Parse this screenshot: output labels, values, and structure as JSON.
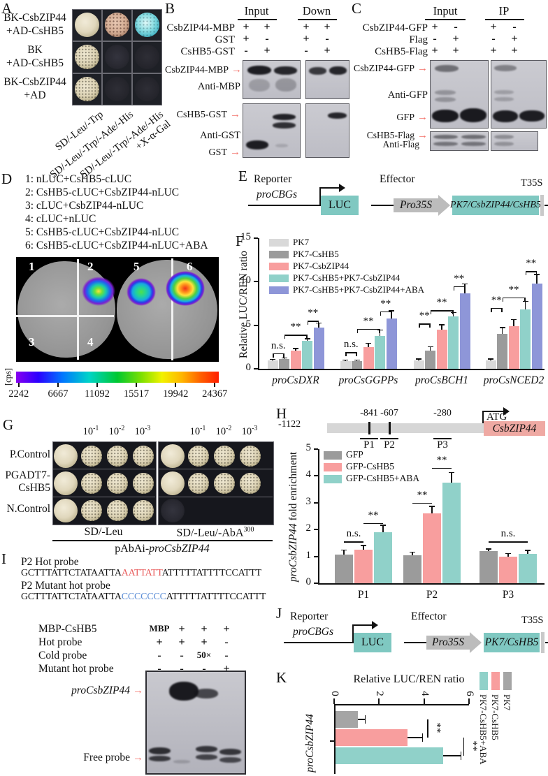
{
  "panels": {
    "A": {
      "label": "A",
      "row_labels": [
        "BK-CsbZIP44\n+AD-CsHB5",
        "BK\n+AD-CsHB5",
        "BK-CsbZIP44\n+AD"
      ],
      "media_labels": [
        "SD/-Leu/-Trp",
        "SD/-Leu/-Trp/-Ade/-His",
        "SD/-Leu/-Trp/-Ade/-His\n+X-α-Gal"
      ],
      "spots": [
        [
          "cream",
          "pink",
          "cyan"
        ],
        [
          "cream",
          "dark",
          "darkfaint"
        ],
        [
          "cream",
          "darkfaint",
          "darkfaint"
        ]
      ]
    },
    "B": {
      "label": "B",
      "group_headers": [
        "Input",
        "Down"
      ],
      "lanes": [
        {
          "name": "CsbZIP44-MBP",
          "vals": [
            "+",
            "+",
            "+",
            "+"
          ]
        },
        {
          "name": "GST",
          "vals": [
            "+",
            "-",
            "+",
            "-"
          ]
        },
        {
          "name": "CsHB5-GST",
          "vals": [
            "-",
            "+",
            "-",
            "+"
          ]
        }
      ],
      "band_labels": {
        "b1": "CsbZIP44-MBP",
        "b2": "Anti-MBP",
        "b3": "CsHB5-GST",
        "b4": "Anti-GST",
        "b5": "GST"
      }
    },
    "C": {
      "label": "C",
      "group_headers": [
        "Input",
        "IP"
      ],
      "lanes": [
        {
          "name": "CsbZIP44-GFP",
          "vals": [
            "+",
            "-",
            "+",
            "-"
          ]
        },
        {
          "name": "Flag",
          "vals": [
            "-",
            "+",
            "-",
            "+"
          ]
        },
        {
          "name": "CsHB5-Flag",
          "vals": [
            "+",
            "+",
            "+",
            "+"
          ]
        }
      ],
      "band_labels": {
        "b1": "CsbZIP44-GFP",
        "b2": "Anti-GFP",
        "b3": "GFP",
        "b4": "CsHB5-Flag",
        "b5": "Anti-Flag"
      }
    },
    "D": {
      "label": "D",
      "combinations": [
        "1: nLUC+CsHB5-cLUC",
        "2: CsHB5-cLUC+CsbZIP44-nLUC",
        "3: cLUC+CsbZIP44-nLUC",
        "4: cLUC+nLUC",
        "5: CsHB5-cLUC+CsbZIP44-nLUC",
        "6: CsHB5-cLUC+CsbZIP44-nLUC+ABA"
      ],
      "leaf_numbers": [
        "1",
        "2",
        "3",
        "4",
        "5",
        "6"
      ],
      "colorbar_unit": "[cps]",
      "colorbar_ticks": [
        "2242",
        "6667",
        "11092",
        "15517",
        "19942",
        "24367"
      ]
    },
    "E": {
      "label": "E",
      "reporter_title": "Reporter",
      "reporter_promoter": "proCBGs",
      "reporter_gene": "LUC",
      "effector_title": "Effector",
      "effector_promoter": "Pro35S",
      "effector_gene": "PK7/CsbZIP44/CsHB5",
      "terminator": "T35S"
    },
    "F": {
      "label": "F"
    },
    "G": {
      "label": "G",
      "dilution_base": "10",
      "dilution_exps": [
        "-1",
        "-2",
        "-3"
      ],
      "row_labels": [
        "P.Control",
        "PGADT7-\nCsHB5",
        "N.Control"
      ],
      "media_left": "SD/-Leu",
      "media_right_base": "SD/-Leu/-AbA",
      "media_right_sup": "300",
      "bait_prefix": "pAbAi-",
      "bait_gene": "proCsbZIP44"
    },
    "H": {
      "label": "H",
      "promoter": {
        "start": "-1122",
        "sites": [
          "-841",
          "-607",
          "-280"
        ],
        "atg": "ATG",
        "gene": "CsbZIP44",
        "probes": [
          "P1",
          "P2",
          "P3"
        ]
      }
    },
    "I": {
      "label": "I",
      "probes": [
        {
          "name": "P2 Hot probe",
          "pre": "GCTTTATTCTATAATTA",
          "core": "AATTATT",
          "post": "ATTTTTATTTTCCATTT",
          "core_style": "red"
        },
        {
          "name": "P2 Mutant hot probe",
          "pre": "GCTTTATTCTATAATTA",
          "core": "CCCCCCC",
          "post": "ATTTTTATTTTCCATTT",
          "core_style": "blue"
        }
      ],
      "emsa_rows": [
        {
          "name": "MBP-CsHB5",
          "vals": [
            "MBP",
            "+",
            "+",
            "+"
          ]
        },
        {
          "name": "Hot probe",
          "vals": [
            "+",
            "+",
            "+",
            "-"
          ]
        },
        {
          "name": "Cold probe",
          "vals": [
            "-",
            "-",
            "50×",
            "-"
          ]
        },
        {
          "name": "Mutant hot probe",
          "vals": [
            "-",
            "-",
            "-",
            "+"
          ]
        }
      ],
      "shift_label": "proCsbZIP44",
      "free_label": "Free probe"
    },
    "J": {
      "label": "J",
      "reporter_title": "Reporter",
      "reporter_promoter": "proCBGs",
      "reporter_gene": "LUC",
      "effector_title": "Effector",
      "effector_promoter": "Pro35S",
      "effector_gene": "PK7/CsHB5",
      "terminator": "T35S"
    },
    "K": {
      "label": "K"
    }
  },
  "chart_data": [
    {
      "panel": "F",
      "type": "bar",
      "ylabel": "Relative LUC/REN ratio",
      "ylim": [
        0,
        15
      ],
      "yticks": [
        0,
        5,
        10,
        15
      ],
      "categories": [
        "proCsDXR",
        "proCsGGPPs",
        "proCsBCH1",
        "proCsNCED2"
      ],
      "italic_categories": true,
      "legend_position": "upper-left",
      "grid": false,
      "series": [
        {
          "name": "PK7",
          "color": "#d9d9d9",
          "values": [
            1.0,
            0.9,
            1.0,
            1.0
          ],
          "errors": [
            0.15,
            0.15,
            0.2,
            0.2
          ]
        },
        {
          "name": "PK7-CsHB5",
          "color": "#9b9b9b",
          "values": [
            1.1,
            0.9,
            2.1,
            4.0
          ],
          "errors": [
            0.2,
            0.15,
            0.5,
            0.8
          ]
        },
        {
          "name": "PK7-CsbZIP44",
          "color": "#f89e9e",
          "values": [
            2.1,
            2.5,
            4.5,
            4.9
          ],
          "errors": [
            0.3,
            0.5,
            0.6,
            0.8
          ]
        },
        {
          "name": "PK7-CsHB5+PK7-CsbZIP44",
          "color": "#90d1c9",
          "values": [
            3.2,
            3.8,
            6.0,
            6.8
          ],
          "errors": [
            0.3,
            0.7,
            0.5,
            1.0
          ]
        },
        {
          "name": "PK7-CsHB5+PK7-CsbZIP44+ABA",
          "color": "#8e96d8",
          "values": [
            4.7,
            5.8,
            8.7,
            9.8
          ],
          "errors": [
            0.6,
            0.9,
            1.1,
            1.1
          ]
        }
      ],
      "sig": [
        [
          {
            "label": "n.s.",
            "s1": 0,
            "s2": 1,
            "y": 1.8
          },
          {
            "label": "**",
            "s1": 1,
            "s2": 3,
            "y": 3.9
          },
          {
            "label": "**",
            "s1": 3,
            "s2": 4,
            "y": 5.5
          }
        ],
        [
          {
            "label": "n.s.",
            "s1": 0,
            "s2": 1,
            "y": 1.9
          },
          {
            "label": "**",
            "s1": 1,
            "s2": 3,
            "y": 4.6
          },
          {
            "label": "**",
            "s1": 3,
            "s2": 4,
            "y": 6.6
          }
        ],
        [
          {
            "label": "**",
            "s1": 0,
            "s2": 1,
            "y": 5.2
          },
          {
            "label": "**",
            "s1": 1,
            "s2": 3,
            "y": 6.7
          },
          {
            "label": "**",
            "s1": 3,
            "s2": 4,
            "y": 9.5
          }
        ],
        [
          {
            "label": "**",
            "s1": 0,
            "s2": 1,
            "y": 7.0
          },
          {
            "label": "**",
            "s1": 1,
            "s2": 3,
            "y": 8.2
          },
          {
            "label": "**",
            "s1": 3,
            "s2": 4,
            "y": 11.2
          }
        ]
      ]
    },
    {
      "panel": "H",
      "type": "bar",
      "ylabel_italic": "proCsbZIP44",
      "ylabel_rest": " fold enrichment",
      "ylim": [
        0,
        5
      ],
      "yticks": [
        0,
        1,
        2,
        3,
        4,
        5
      ],
      "categories": [
        "P1",
        "P2",
        "P3"
      ],
      "italic_categories": false,
      "legend_position": "upper-left",
      "grid": false,
      "series": [
        {
          "name": "GFP",
          "color": "#9b9b9b",
          "values": [
            1.08,
            1.03,
            1.2
          ],
          "errors": [
            0.18,
            0.15,
            0.1
          ]
        },
        {
          "name": "GFP-CsHB5",
          "color": "#f89e9e",
          "values": [
            1.25,
            2.6,
            1.0
          ],
          "errors": [
            0.17,
            0.28,
            0.12
          ]
        },
        {
          "name": "GFP-CsHB5+ABA",
          "color": "#90d1c9",
          "values": [
            1.9,
            3.75,
            1.1
          ],
          "errors": [
            0.28,
            0.4,
            0.15
          ]
        }
      ],
      "sig": [
        [
          {
            "label": "n.s.",
            "s1": 0,
            "s2": 1,
            "y": 1.55
          },
          {
            "label": "**",
            "s1": 1,
            "s2": 2,
            "y": 2.25
          }
        ],
        [
          {
            "label": "**",
            "s1": 0,
            "s2": 1,
            "y": 3.0
          },
          {
            "label": "**",
            "s1": 1,
            "s2": 2,
            "y": 4.3
          }
        ],
        [
          {
            "label": "n.s.",
            "s1": 0,
            "s2": 2,
            "y": 1.55
          }
        ]
      ]
    },
    {
      "panel": "K",
      "type": "bar",
      "orientation": "rotated-horizontal",
      "axis_title": "Relative LUC/REN ratio",
      "xlim": [
        0,
        6
      ],
      "xticks": [
        0,
        2,
        4,
        6
      ],
      "category": "proCsbZIP44",
      "series": [
        {
          "name": "PK7",
          "color": "#a5a5a5",
          "value": 1.0,
          "error": 0.3
        },
        {
          "name": "PK7-CsHB5",
          "color": "#f89e9e",
          "value": 3.2,
          "error": 0.65
        },
        {
          "name": "PK7-CsHB5+ABA",
          "color": "#90d1c9",
          "value": 4.8,
          "error": 0.75
        }
      ],
      "sig": [
        {
          "label": "**",
          "at": 4.15,
          "rows": [
            0,
            1
          ]
        },
        {
          "label": "**",
          "at": 5.75,
          "rows": [
            1,
            2
          ]
        }
      ]
    }
  ],
  "colors": {
    "teal_box": "#7fc8c1",
    "pink_gene_box": "#efa9a3",
    "arrow_red": "#f4736b",
    "seq_red": "#e85d5d",
    "seq_blue": "#5b8dd6",
    "promoter_gray": "#d6d6d6"
  }
}
